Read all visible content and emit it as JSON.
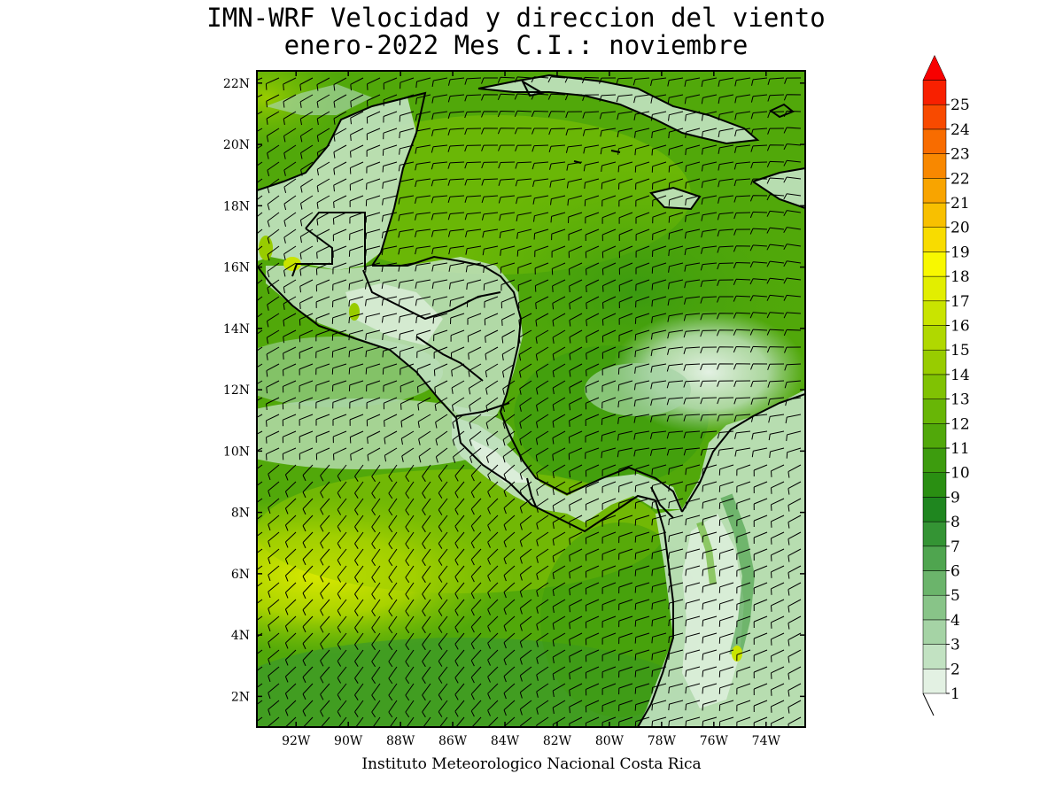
{
  "title": {
    "line1": "IMN-WRF Velocidad y direccion del viento",
    "line2": "enero-2022 Mes C.I.: noviembre"
  },
  "credit": "Instituto Meteorologico Nacional Costa Rica",
  "map": {
    "lon_range": [
      -93.5,
      -72.5
    ],
    "lat_range": [
      1,
      22.4
    ],
    "lon_ticks": [
      {
        "value": -92,
        "label": "92W"
      },
      {
        "value": -90,
        "label": "90W"
      },
      {
        "value": -88,
        "label": "88W"
      },
      {
        "value": -86,
        "label": "86W"
      },
      {
        "value": -84,
        "label": "84W"
      },
      {
        "value": -82,
        "label": "82W"
      },
      {
        "value": -80,
        "label": "80W"
      },
      {
        "value": -78,
        "label": "78W"
      },
      {
        "value": -76,
        "label": "76W"
      },
      {
        "value": -74,
        "label": "74W"
      }
    ],
    "lat_ticks": [
      {
        "value": 2,
        "label": "2N"
      },
      {
        "value": 4,
        "label": "4N"
      },
      {
        "value": 6,
        "label": "6N"
      },
      {
        "value": 8,
        "label": "8N"
      },
      {
        "value": 10,
        "label": "10N"
      },
      {
        "value": 12,
        "label": "12N"
      },
      {
        "value": 14,
        "label": "14N"
      },
      {
        "value": 16,
        "label": "16N"
      },
      {
        "value": 18,
        "label": "18N"
      },
      {
        "value": 20,
        "label": "20N"
      },
      {
        "value": 22,
        "label": "22N"
      }
    ]
  },
  "colorbar": {
    "levels": [
      "1",
      "2",
      "3",
      "4",
      "5",
      "6",
      "7",
      "8",
      "9",
      "10",
      "11",
      "12",
      "13",
      "14",
      "15",
      "16",
      "17",
      "18",
      "19",
      "20",
      "21",
      "22",
      "23",
      "24",
      "25"
    ],
    "colors": [
      "#e3f1e3",
      "#c2e2c2",
      "#a5d3a5",
      "#88c488",
      "#6bb46b",
      "#4fa54f",
      "#349434",
      "#1f861f",
      "#2a8f12",
      "#3d9c0e",
      "#51a80a",
      "#68b606",
      "#80c203",
      "#98cc00",
      "#b0d800",
      "#c9e400",
      "#e2ee00",
      "#f8f800",
      "#f8dc00",
      "#f8c000",
      "#f8a400",
      "#f88800",
      "#f86c00",
      "#f84a00",
      "#f82000"
    ],
    "overflow_color": "#f80000"
  },
  "palette": {
    "ocean_strong": "#2a8f12",
    "ocean_mid": "#51a80a",
    "ocean_yellow": "#c9e400",
    "land_light": "#c2e2c2",
    "land_pale": "#e3f1e3",
    "coast": "#000000",
    "barb": "#000000"
  }
}
